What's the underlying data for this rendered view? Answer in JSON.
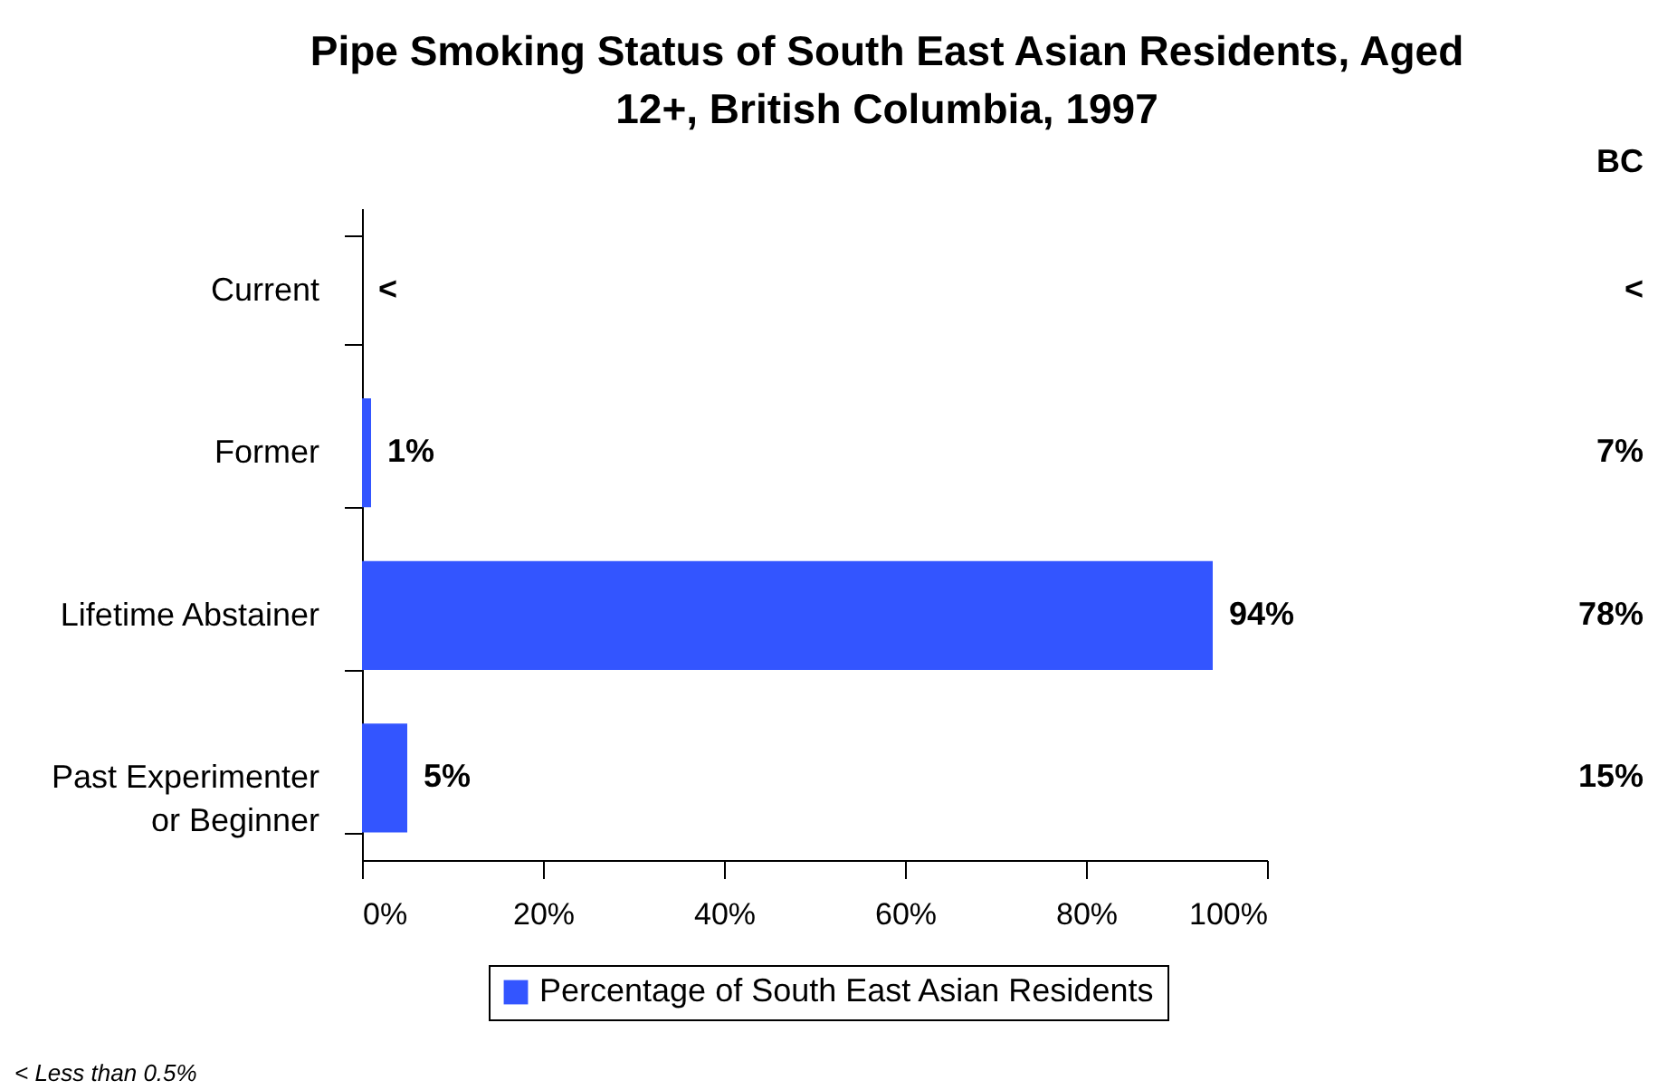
{
  "chart_data": {
    "type": "bar",
    "orientation": "horizontal",
    "title": "Pipe Smoking Status of South East Asian Residents, Aged 12+, British Columbia, 1997",
    "categories": [
      "Current",
      "Former",
      "Lifetime Abstainer",
      "Past Experimenter\nor Beginner"
    ],
    "series": [
      {
        "name": "Percentage of South East Asian Residents",
        "color": "#3355ff",
        "values": [
          0,
          1,
          94,
          5
        ],
        "value_labels": [
          "<",
          "1%",
          "94%",
          "5%"
        ]
      }
    ],
    "xlim": [
      0,
      100
    ],
    "xticks": [
      {
        "value": 0,
        "label": "0%"
      },
      {
        "value": 20,
        "label": "20%"
      },
      {
        "value": 40,
        "label": "40%"
      },
      {
        "value": 60,
        "label": "60%"
      },
      {
        "value": 80,
        "label": "80%"
      },
      {
        "value": 100,
        "label": "100%"
      }
    ],
    "grid": false,
    "legend": "bottom",
    "annotations": [
      "BC",
      "<",
      "7%",
      "78%",
      "15%",
      "< Less than 0.5%"
    ]
  }
}
